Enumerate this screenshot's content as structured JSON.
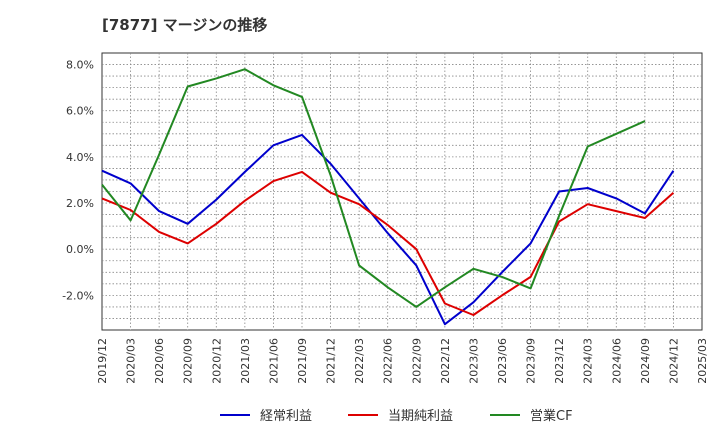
{
  "chart_data": {
    "type": "line",
    "title": "[7877]  マージンの推移",
    "xlabel": "",
    "ylabel": "",
    "ylim": [
      -3.5,
      8.5
    ],
    "yticks": [
      -2.0,
      0.0,
      2.0,
      4.0,
      6.0,
      8.0
    ],
    "ytick_labels": [
      "-2.0%",
      "0.0%",
      "2.0%",
      "4.0%",
      "6.0%",
      "8.0%"
    ],
    "categories": [
      "2019/12",
      "2020/03",
      "2020/06",
      "2020/09",
      "2020/12",
      "2021/03",
      "2021/06",
      "2021/09",
      "2021/12",
      "2022/03",
      "2022/06",
      "2022/09",
      "2022/12",
      "2023/03",
      "2023/06",
      "2023/09",
      "2023/12",
      "2024/03",
      "2024/06",
      "2024/09",
      "2024/12",
      "2025/03"
    ],
    "grid": true,
    "legend_position": "bottom",
    "series": [
      {
        "name": "経常利益",
        "color": "#0000cc",
        "values": [
          3.4,
          2.85,
          1.65,
          1.1,
          2.15,
          3.35,
          4.5,
          4.95,
          3.7,
          2.2,
          0.7,
          -0.7,
          -3.25,
          -2.3,
          -1.0,
          0.25,
          2.5,
          2.65,
          2.2,
          1.55,
          3.4,
          null
        ]
      },
      {
        "name": "当期純利益",
        "color": "#dd0000",
        "values": [
          2.2,
          1.7,
          0.75,
          0.25,
          1.1,
          2.1,
          2.95,
          3.35,
          2.45,
          1.95,
          1.05,
          0.0,
          -2.35,
          -2.85,
          -2.0,
          -1.2,
          1.2,
          1.95,
          1.65,
          1.35,
          2.45,
          null
        ]
      },
      {
        "name": "営業CF",
        "color": "#228822",
        "values": [
          2.8,
          1.25,
          4.1,
          7.05,
          7.4,
          7.8,
          7.1,
          6.6,
          3.2,
          -0.7,
          -1.65,
          -2.5,
          -1.65,
          -0.85,
          -1.2,
          -1.7,
          1.45,
          4.45,
          5.0,
          5.55,
          null,
          null
        ]
      }
    ]
  }
}
